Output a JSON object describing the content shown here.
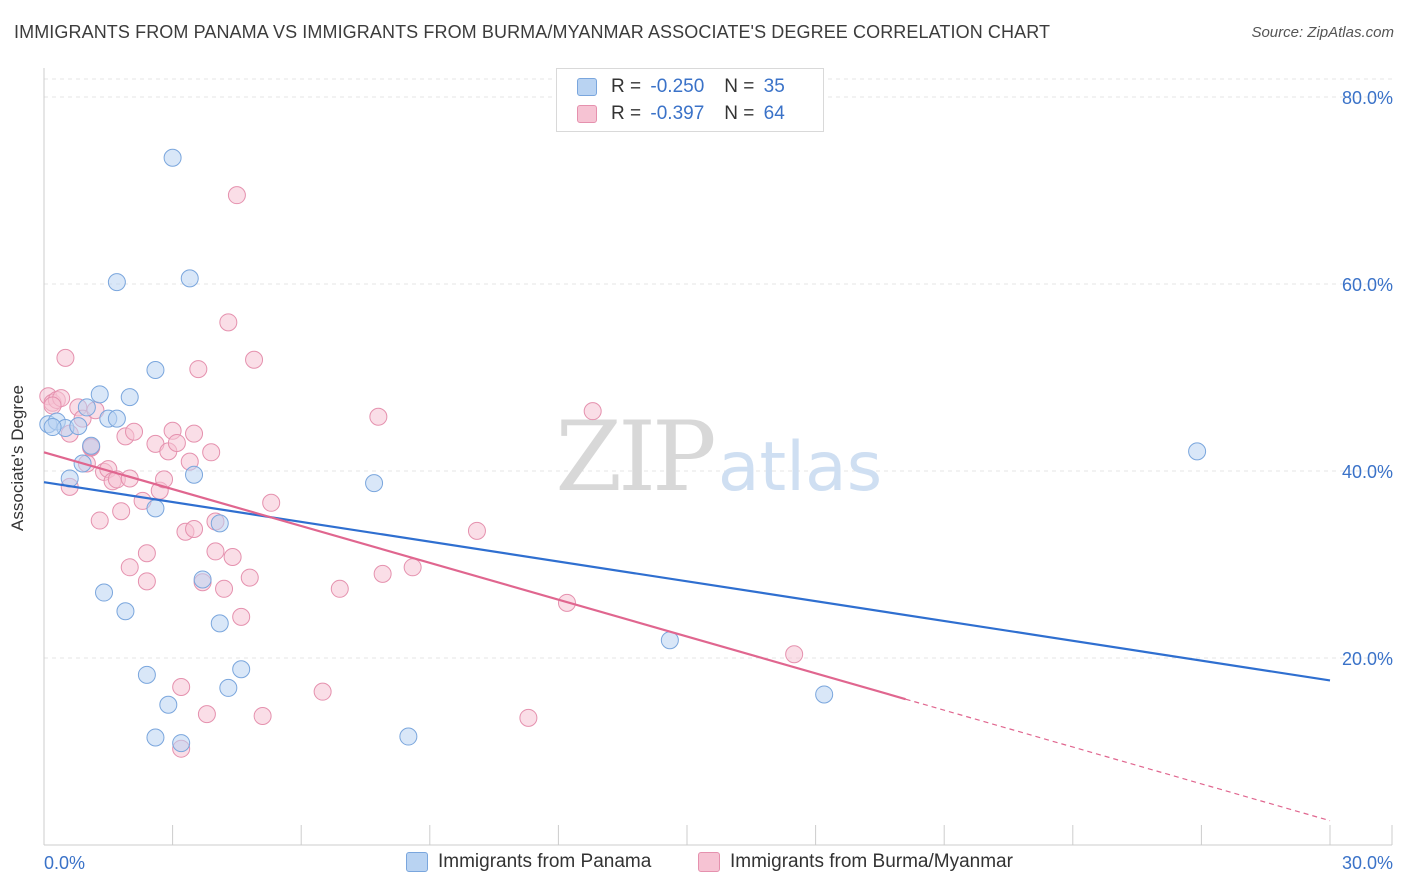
{
  "header": {
    "title": "IMMIGRANTS FROM PANAMA VS IMMIGRANTS FROM BURMA/MYANMAR ASSOCIATE'S DEGREE CORRELATION CHART",
    "source": "Source: ZipAtlas.com"
  },
  "watermark": {
    "zip": "ZIP",
    "atlas": "atlas"
  },
  "legend": {
    "panama": {
      "r_label": "R =",
      "r_value": "-0.250",
      "n_label": "N =",
      "n_value": "35"
    },
    "burma": {
      "r_label": "R =",
      "r_value": "-0.397",
      "n_label": "N =",
      "n_value": "64"
    }
  },
  "colors": {
    "panama_fill": "#b9d3f2",
    "panama_stroke": "#7aa6dd",
    "panama_line": "#2f6fd0",
    "burma_fill": "#f6c3d3",
    "burma_stroke": "#e591ae",
    "burma_line": "#e0668f",
    "axis_text": "#3a72c8",
    "grid": "#e4e4e4"
  },
  "chart_data": {
    "type": "scatter",
    "title": "IMMIGRANTS FROM PANAMA VS IMMIGRANTS FROM BURMA/MYANMAR ASSOCIATE'S DEGREE CORRELATION CHART",
    "xlabel": "",
    "ylabel": "Associate's Degree",
    "xlim": [
      0,
      30
    ],
    "ylim": [
      0,
      80
    ],
    "x_tick_labels": [
      "0.0%",
      "30.0%"
    ],
    "y_ticks": [
      20,
      40,
      60,
      80
    ],
    "y_tick_labels": [
      "20.0%",
      "40.0%",
      "60.0%",
      "80.0%"
    ],
    "grid": true,
    "legend_placement": "top-center",
    "series": [
      {
        "name": "Immigrants from Panama",
        "points": [
          [
            0.1,
            45.0
          ],
          [
            0.3,
            45.3
          ],
          [
            0.5,
            44.6
          ],
          [
            0.8,
            44.8
          ],
          [
            1.0,
            46.8
          ],
          [
            0.6,
            39.2
          ],
          [
            0.9,
            40.8
          ],
          [
            1.1,
            42.7
          ],
          [
            1.3,
            48.2
          ],
          [
            1.5,
            45.6
          ],
          [
            1.7,
            45.6
          ],
          [
            2.0,
            47.9
          ],
          [
            1.4,
            27.0
          ],
          [
            1.9,
            25.0
          ],
          [
            2.4,
            18.2
          ],
          [
            2.6,
            11.5
          ],
          [
            2.9,
            15.0
          ],
          [
            3.2,
            10.9
          ],
          [
            2.6,
            36.0
          ],
          [
            2.6,
            50.8
          ],
          [
            3.0,
            73.5
          ],
          [
            3.4,
            60.6
          ],
          [
            1.7,
            60.2
          ],
          [
            3.5,
            39.6
          ],
          [
            3.7,
            28.4
          ],
          [
            4.1,
            34.4
          ],
          [
            4.1,
            23.7
          ],
          [
            4.3,
            16.8
          ],
          [
            4.6,
            18.8
          ],
          [
            7.7,
            38.7
          ],
          [
            8.5,
            11.6
          ],
          [
            14.6,
            21.9
          ],
          [
            18.2,
            16.1
          ],
          [
            26.9,
            42.1
          ],
          [
            0.2,
            44.7
          ]
        ]
      },
      {
        "name": "Immigrants from Burma/Myanmar",
        "points": [
          [
            0.1,
            48.0
          ],
          [
            0.2,
            47.3
          ],
          [
            0.3,
            47.6
          ],
          [
            0.5,
            52.1
          ],
          [
            0.4,
            47.8
          ],
          [
            0.6,
            44.0
          ],
          [
            0.6,
            38.3
          ],
          [
            0.8,
            46.8
          ],
          [
            0.9,
            45.6
          ],
          [
            1.0,
            40.8
          ],
          [
            1.1,
            42.5
          ],
          [
            1.2,
            46.5
          ],
          [
            1.3,
            34.7
          ],
          [
            1.4,
            39.9
          ],
          [
            1.5,
            40.2
          ],
          [
            1.6,
            38.9
          ],
          [
            1.7,
            39.1
          ],
          [
            1.8,
            35.7
          ],
          [
            1.9,
            43.7
          ],
          [
            2.0,
            29.7
          ],
          [
            2.1,
            44.2
          ],
          [
            2.3,
            36.8
          ],
          [
            2.4,
            28.2
          ],
          [
            2.4,
            31.2
          ],
          [
            2.6,
            42.9
          ],
          [
            2.7,
            37.9
          ],
          [
            2.8,
            39.1
          ],
          [
            2.9,
            42.1
          ],
          [
            3.0,
            44.3
          ],
          [
            3.1,
            43.0
          ],
          [
            3.2,
            16.9
          ],
          [
            3.3,
            33.5
          ],
          [
            3.4,
            41.0
          ],
          [
            3.5,
            44.0
          ],
          [
            3.5,
            33.8
          ],
          [
            3.6,
            50.9
          ],
          [
            3.7,
            28.1
          ],
          [
            3.8,
            14.0
          ],
          [
            3.9,
            42.0
          ],
          [
            4.0,
            31.4
          ],
          [
            4.0,
            34.6
          ],
          [
            4.2,
            27.4
          ],
          [
            4.3,
            55.9
          ],
          [
            4.4,
            30.8
          ],
          [
            4.5,
            69.5
          ],
          [
            4.6,
            24.4
          ],
          [
            4.8,
            28.6
          ],
          [
            4.9,
            51.9
          ],
          [
            5.1,
            13.8
          ],
          [
            5.3,
            36.6
          ],
          [
            6.5,
            16.4
          ],
          [
            6.9,
            27.4
          ],
          [
            7.8,
            45.8
          ],
          [
            7.9,
            29.0
          ],
          [
            8.6,
            29.7
          ],
          [
            10.1,
            33.6
          ],
          [
            11.3,
            13.6
          ],
          [
            12.2,
            25.9
          ],
          [
            12.8,
            46.4
          ],
          [
            17.5,
            20.4
          ],
          [
            3.2,
            10.3
          ],
          [
            0.2,
            47.0
          ],
          [
            2.0,
            39.2
          ],
          [
            1.1,
            42.6
          ]
        ]
      }
    ],
    "trend_lines": [
      {
        "series": "Immigrants from Panama",
        "x_start": 0,
        "y_start": 38.8,
        "x_end": 30,
        "y_end": 17.6
      },
      {
        "series": "Immigrants from Burma/Myanmar",
        "x_start": 0,
        "y_start": 42.0,
        "x_end": 20.1,
        "y_end": 15.6,
        "dashed_to_x": 30,
        "dashed_to_y": 2.6
      }
    ]
  },
  "bottom_legend": {
    "panama_label": "Immigrants from Panama",
    "burma_label": "Immigrants from Burma/Myanmar"
  }
}
